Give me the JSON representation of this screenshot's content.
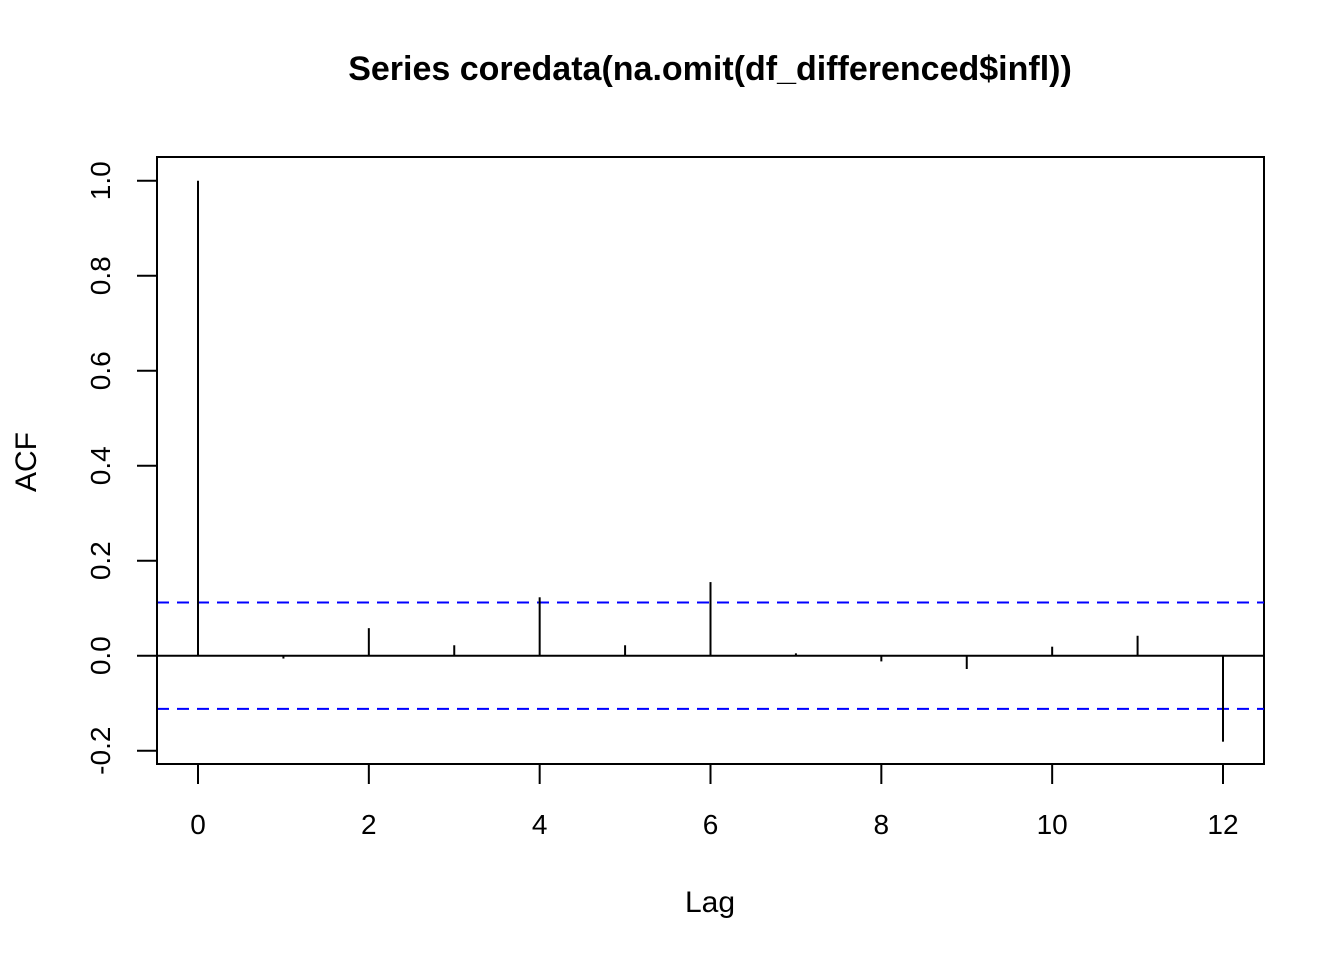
{
  "chart_data": {
    "type": "bar",
    "title": "Series  coredata(na.omit(df_differenced$infl))",
    "xlabel": "Lag",
    "ylabel": "ACF",
    "x": [
      0,
      1,
      2,
      3,
      4,
      5,
      6,
      7,
      8,
      9,
      10,
      11,
      12
    ],
    "values": [
      1.0,
      -0.006,
      0.058,
      0.022,
      0.123,
      0.022,
      0.155,
      0.005,
      -0.012,
      -0.028,
      0.019,
      0.042,
      -0.181
    ],
    "xlim": [
      -0.48,
      12.48
    ],
    "ylim": [
      -0.228,
      1.05
    ],
    "xticks": [
      0,
      2,
      4,
      6,
      8,
      10,
      12
    ],
    "xtick_labels": [
      "0",
      "2",
      "4",
      "6",
      "8",
      "10",
      "12"
    ],
    "yticks": [
      -0.2,
      0.0,
      0.2,
      0.4,
      0.6,
      0.8,
      1.0
    ],
    "ytick_labels": [
      "-0.2",
      "0.0",
      "0.2",
      "0.4",
      "0.6",
      "0.8",
      "1.0"
    ],
    "confidence_bound": 0.112,
    "zero_line": 0,
    "grid": false,
    "colors": {
      "spikes": "#000000",
      "confidence_lines": "#0000ff",
      "axes": "#000000"
    }
  }
}
